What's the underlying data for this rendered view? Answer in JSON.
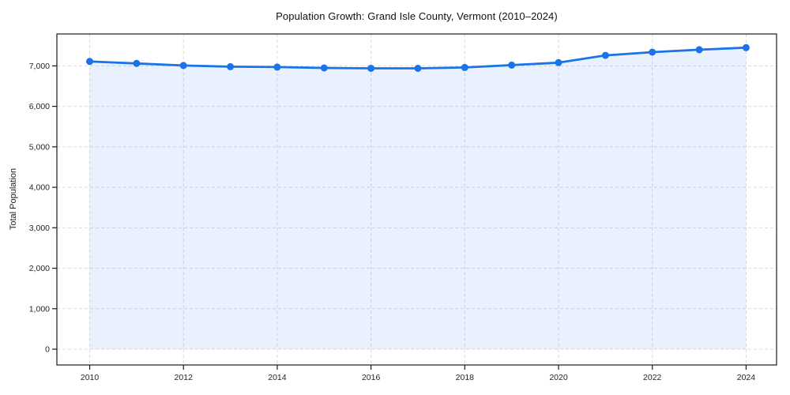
{
  "title": "Population Growth: Grand Isle County, Vermont (2010–2024)",
  "colors": {
    "line": "#1a73e8",
    "marker": "#1a73e8",
    "area_fill": "rgba(26,115,232,0.10)",
    "grid": "#dcdcdc",
    "axis_border": "#1a1a1a",
    "tick_label": "#262626",
    "background": "#ffffff"
  },
  "chart_data": {
    "type": "area",
    "title": "Population Growth: Grand Isle County, Vermont (2010–2024)",
    "xlabel": "",
    "ylabel": "Total Population",
    "x": [
      2010,
      2011,
      2012,
      2013,
      2014,
      2015,
      2016,
      2017,
      2018,
      2019,
      2020,
      2021,
      2022,
      2023,
      2024
    ],
    "values": [
      7110,
      7060,
      7010,
      6980,
      6970,
      6950,
      6940,
      6940,
      6960,
      7020,
      7080,
      7260,
      7340,
      7400,
      7450
    ],
    "series_name": "Total Population",
    "xticks": [
      2010,
      2012,
      2014,
      2016,
      2018,
      2020,
      2022,
      2024
    ],
    "xtick_labels": [
      "2010",
      "2012",
      "2014",
      "2016",
      "2018",
      "2020",
      "2022",
      "2024"
    ],
    "yticks": [
      0,
      1000,
      2000,
      3000,
      4000,
      5000,
      6000,
      7000
    ],
    "ytick_labels": [
      "0",
      "1,000",
      "2,000",
      "3,000",
      "4,000",
      "5,000",
      "6,000",
      "7,000"
    ],
    "ylim": [
      0,
      7800
    ],
    "xlim": [
      2009.3,
      2024.65
    ],
    "grid": "dashed",
    "legend": false,
    "marker": "circle",
    "fill_to_zero": true
  }
}
